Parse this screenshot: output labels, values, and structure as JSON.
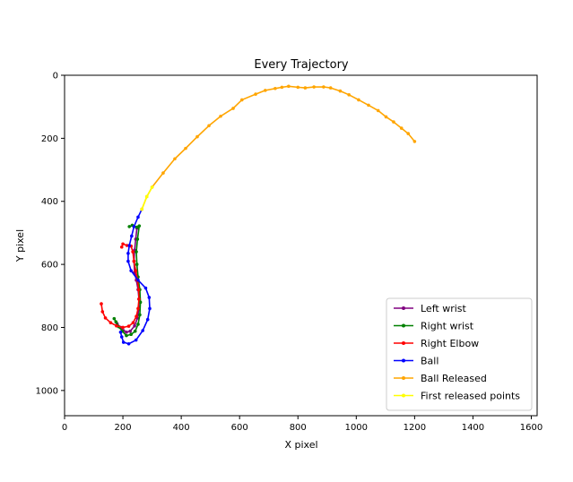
{
  "chart_data": {
    "type": "line",
    "title": "Every Trajectory",
    "xlabel": "X pixel",
    "ylabel": "Y pixel",
    "xlim": [
      0,
      1620
    ],
    "ylim": [
      1080,
      0
    ],
    "y_inverted": true,
    "xticks": [
      "0",
      "200",
      "400",
      "600",
      "800",
      "1000",
      "1200",
      "1400",
      "1600"
    ],
    "yticks": [
      "0",
      "200",
      "400",
      "600",
      "800",
      "1000"
    ],
    "grid": false,
    "legend_position": "bottom-right",
    "series": [
      {
        "name": "Left wrist",
        "color": "#800080",
        "points": [
          [
            248,
            485
          ],
          [
            244,
            520
          ],
          [
            240,
            555
          ],
          [
            238,
            590
          ],
          [
            240,
            625
          ],
          [
            246,
            650
          ],
          [
            252,
            680
          ],
          [
            255,
            710
          ],
          [
            255,
            740
          ],
          [
            250,
            770
          ],
          [
            240,
            795
          ],
          [
            225,
            812
          ],
          [
            212,
            815
          ],
          [
            202,
            810
          ],
          [
            192,
            800
          ],
          [
            180,
            788
          ]
        ]
      },
      {
        "name": "Right wrist",
        "color": "#008000",
        "points": [
          [
            222,
            480
          ],
          [
            232,
            476
          ],
          [
            248,
            482
          ],
          [
            256,
            478
          ],
          [
            250,
            520
          ],
          [
            246,
            560
          ],
          [
            248,
            600
          ],
          [
            252,
            640
          ],
          [
            258,
            680
          ],
          [
            260,
            720
          ],
          [
            258,
            760
          ],
          [
            252,
            790
          ],
          [
            242,
            812
          ],
          [
            228,
            822
          ],
          [
            212,
            826
          ],
          [
            198,
            812
          ],
          [
            186,
            798
          ],
          [
            176,
            782
          ],
          [
            170,
            772
          ]
        ]
      },
      {
        "name": "Right Elbow",
        "color": "#ff0000",
        "points": [
          [
            196,
            545
          ],
          [
            200,
            535
          ],
          [
            214,
            540
          ],
          [
            228,
            542
          ],
          [
            234,
            560
          ],
          [
            238,
            590
          ],
          [
            244,
            620
          ],
          [
            250,
            650
          ],
          [
            254,
            680
          ],
          [
            255,
            710
          ],
          [
            252,
            740
          ],
          [
            246,
            765
          ],
          [
            235,
            785
          ],
          [
            220,
            796
          ],
          [
            200,
            800
          ],
          [
            178,
            795
          ],
          [
            158,
            785
          ],
          [
            140,
            770
          ],
          [
            130,
            750
          ],
          [
            126,
            725
          ]
        ]
      },
      {
        "name": "Ball",
        "color": "#0000ff",
        "points": [
          [
            265,
            425
          ],
          [
            252,
            450
          ],
          [
            238,
            480
          ],
          [
            230,
            510
          ],
          [
            222,
            540
          ],
          [
            218,
            565
          ],
          [
            218,
            590
          ],
          [
            228,
            620
          ],
          [
            252,
            650
          ],
          [
            278,
            675
          ],
          [
            290,
            705
          ],
          [
            292,
            740
          ],
          [
            285,
            775
          ],
          [
            268,
            810
          ],
          [
            245,
            840
          ],
          [
            220,
            852
          ],
          [
            202,
            847
          ],
          [
            196,
            830
          ],
          [
            192,
            815
          ]
        ]
      },
      {
        "name": "Ball Released",
        "color": "#ffa500",
        "points": [
          [
            265,
            425
          ],
          [
            282,
            385
          ],
          [
            300,
            355
          ],
          [
            338,
            310
          ],
          [
            378,
            265
          ],
          [
            415,
            232
          ],
          [
            455,
            195
          ],
          [
            495,
            160
          ],
          [
            535,
            130
          ],
          [
            578,
            105
          ],
          [
            608,
            78
          ],
          [
            655,
            60
          ],
          [
            688,
            48
          ],
          [
            722,
            42
          ],
          [
            745,
            38
          ],
          [
            768,
            35
          ],
          [
            800,
            38
          ],
          [
            825,
            40
          ],
          [
            855,
            37
          ],
          [
            888,
            37
          ],
          [
            912,
            40
          ],
          [
            945,
            50
          ],
          [
            975,
            62
          ],
          [
            1008,
            78
          ],
          [
            1042,
            95
          ],
          [
            1075,
            112
          ],
          [
            1102,
            132
          ],
          [
            1128,
            148
          ],
          [
            1155,
            168
          ],
          [
            1178,
            185
          ],
          [
            1200,
            210
          ]
        ]
      },
      {
        "name": "First released points",
        "color": "#ffff00",
        "points": [
          [
            265,
            425
          ],
          [
            282,
            385
          ],
          [
            300,
            355
          ]
        ]
      }
    ]
  }
}
